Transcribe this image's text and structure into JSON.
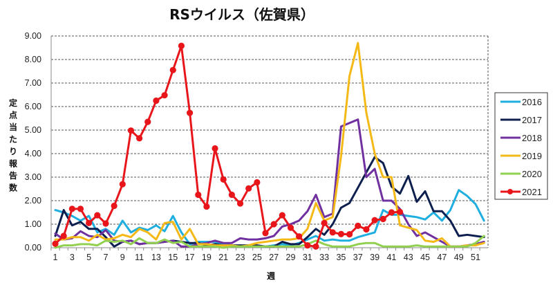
{
  "chart_data": {
    "type": "line",
    "title": "RSウイルス（佐賀県）",
    "xlabel": "週",
    "ylabel": "定点当たり報告数",
    "ylim": [
      0,
      9
    ],
    "xlim": [
      1,
      52
    ],
    "grid": true,
    "legend_position": "right",
    "yticks": [
      "0.00",
      "1.00",
      "2.00",
      "3.00",
      "4.00",
      "5.00",
      "6.00",
      "7.00",
      "8.00",
      "9.00"
    ],
    "xticks": [
      "1",
      "3",
      "5",
      "7",
      "9",
      "11",
      "13",
      "15",
      "17",
      "19",
      "21",
      "23",
      "25",
      "27",
      "29",
      "31",
      "33",
      "35",
      "37",
      "39",
      "41",
      "43",
      "45",
      "47",
      "49",
      "51"
    ],
    "series": [
      {
        "name": "2016",
        "color": "#1FAEE0",
        "marker": false,
        "values": [
          1.6,
          1.5,
          1.35,
          1.15,
          1.35,
          0.65,
          0.8,
          0.55,
          1.15,
          0.65,
          0.85,
          0.75,
          0.95,
          0.7,
          1.35,
          0.65,
          0.15,
          0.25,
          0.25,
          0.25,
          0.15,
          0.1,
          0.05,
          0.1,
          0.05,
          0.05,
          0.1,
          0.15,
          0.1,
          0.2,
          0.35,
          0.5,
          0.3,
          0.35,
          0.3,
          0.3,
          0.45,
          0.55,
          0.65,
          1.6,
          1.4,
          1.4,
          1.35,
          1.3,
          1.2,
          1.5,
          1.15,
          1.6,
          2.45,
          2.2,
          1.85,
          1.15
        ]
      },
      {
        "name": "2017",
        "color": "#0D1F4E",
        "marker": false,
        "values": [
          0.5,
          1.6,
          0.95,
          1.1,
          0.8,
          0.8,
          0.45,
          0.05,
          0.25,
          0.3,
          0.15,
          0.2,
          0.2,
          0.25,
          0.3,
          0.25,
          0.2,
          0.2,
          0.1,
          0.15,
          0.1,
          0.1,
          0.1,
          0.1,
          0.1,
          0.05,
          0.05,
          0.25,
          0.15,
          0.15,
          0.45,
          0.8,
          0.55,
          1.0,
          1.7,
          1.9,
          2.55,
          3.2,
          3.85,
          3.6,
          2.6,
          2.3,
          3.05,
          1.95,
          2.4,
          1.55,
          1.55,
          1.15,
          0.5,
          0.55,
          0.5,
          0.45
        ]
      },
      {
        "name": "2018",
        "color": "#7030A0",
        "marker": false,
        "values": [
          0.6,
          0.35,
          0.4,
          0.7,
          0.5,
          0.45,
          0.75,
          0.3,
          0.25,
          0.3,
          0.15,
          0.2,
          0.2,
          0.25,
          0.3,
          0.05,
          0.05,
          0.15,
          0.2,
          0.3,
          0.2,
          0.2,
          0.4,
          0.35,
          0.35,
          0.4,
          0.5,
          0.9,
          1.0,
          1.15,
          1.55,
          2.25,
          1.3,
          1.45,
          5.15,
          5.3,
          5.45,
          3.0,
          3.35,
          2.0,
          2.0,
          1.65,
          1.0,
          0.5,
          0.65,
          0.45,
          0.25,
          0.05,
          0.05,
          0.1,
          0.15,
          0.25
        ]
      },
      {
        "name": "2019",
        "color": "#F4B916",
        "marker": false,
        "values": [
          0.35,
          0.35,
          0.45,
          0.45,
          0.3,
          0.55,
          0.35,
          0.4,
          0.55,
          0.45,
          0.8,
          0.65,
          0.35,
          1.05,
          1.1,
          0.35,
          0.8,
          0.15,
          0.15,
          0.1,
          0.1,
          0.1,
          0.05,
          0.1,
          0.2,
          0.25,
          0.3,
          0.35,
          0.35,
          0.4,
          0.8,
          1.9,
          1.15,
          1.3,
          3.9,
          7.3,
          8.7,
          5.75,
          4.0,
          3.0,
          3.0,
          0.95,
          0.85,
          0.75,
          0.3,
          0.25,
          0.4,
          0.05,
          0.05,
          0.1,
          0.1,
          0.2
        ]
      },
      {
        "name": "2020",
        "color": "#92D050",
        "marker": false,
        "values": [
          0.0,
          0.1,
          0.1,
          0.15,
          0.15,
          0.1,
          0.3,
          0.25,
          0.3,
          0.15,
          0.4,
          0.2,
          0.2,
          0.35,
          0.2,
          0.25,
          0.05,
          0.05,
          0.05,
          0.05,
          0.0,
          0.05,
          0.05,
          0.05,
          0.05,
          0.05,
          0.05,
          0.05,
          0.05,
          0.05,
          0.15,
          0.3,
          0.15,
          0.05,
          0.05,
          0.05,
          0.15,
          0.2,
          0.2,
          0.05,
          0.05,
          0.05,
          0.05,
          0.1,
          0.05,
          0.05,
          0.05,
          0.05,
          0.05,
          0.05,
          0.2,
          0.5
        ]
      },
      {
        "name": "2021",
        "color": "#E8161B",
        "marker": true,
        "values": [
          0.17,
          0.5,
          1.65,
          1.65,
          1.05,
          1.38,
          1.03,
          1.78,
          2.7,
          4.98,
          4.65,
          5.35,
          6.25,
          6.48,
          7.55,
          8.58,
          5.73,
          2.25,
          1.75,
          4.22,
          2.9,
          2.25,
          1.88,
          2.52,
          2.78,
          0.62,
          1.0,
          1.38,
          0.85,
          0.48,
          0.1,
          0.05,
          1.05,
          0.65,
          0.58,
          0.57,
          0.93,
          0.78,
          1.17,
          1.22,
          1.5,
          1.52
        ]
      }
    ]
  }
}
